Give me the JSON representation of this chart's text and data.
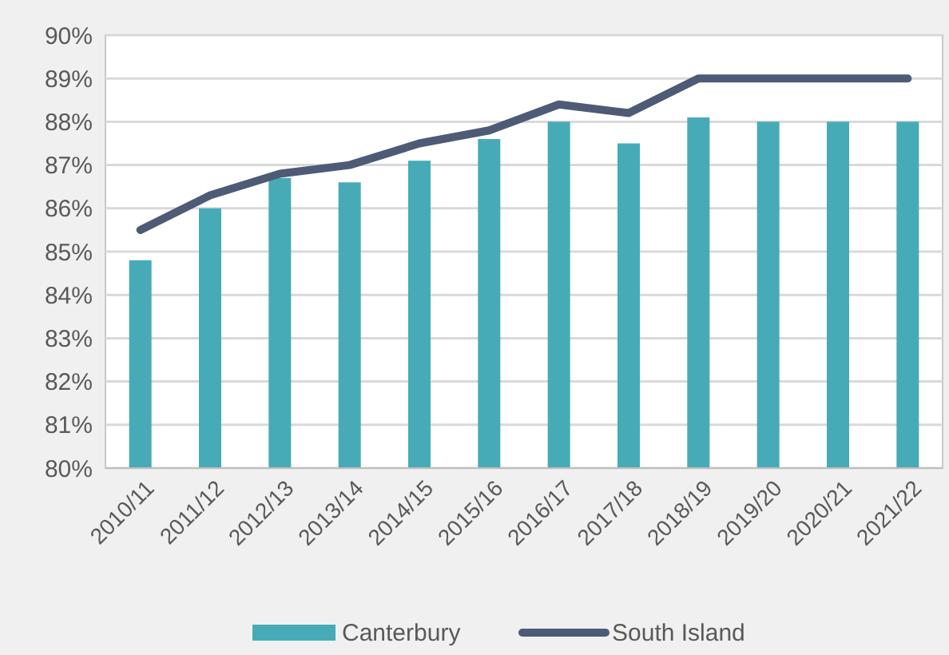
{
  "chart_data": {
    "type": "bar",
    "categories": [
      "2010/11",
      "2011/12",
      "2012/13",
      "2013/14",
      "2014/15",
      "2015/16",
      "2016/17",
      "2017/18",
      "2018/19",
      "2019/20",
      "2020/21",
      "2021/22"
    ],
    "series": [
      {
        "name": "Canterbury",
        "color": "#46abb7",
        "values": [
          84.8,
          86.0,
          86.7,
          86.6,
          87.1,
          87.6,
          88.0,
          87.5,
          88.1,
          88.0,
          88.0,
          88.0
        ]
      },
      {
        "name": "South Island",
        "type": "line",
        "color": "#4d5b77",
        "values": [
          85.5,
          86.3,
          86.8,
          87.0,
          87.5,
          87.8,
          88.4,
          88.2,
          89.0,
          89.0,
          89.0,
          89.0
        ]
      }
    ],
    "ylim": [
      80,
      90
    ],
    "yticks": [
      {
        "value": 80,
        "label": "80%"
      },
      {
        "value": 81,
        "label": "81%"
      },
      {
        "value": 82,
        "label": "82%"
      },
      {
        "value": 83,
        "label": "83%"
      },
      {
        "value": 84,
        "label": "84%"
      },
      {
        "value": 85,
        "label": "85%"
      },
      {
        "value": 86,
        "label": "86%"
      },
      {
        "value": 87,
        "label": "87%"
      },
      {
        "value": 88,
        "label": "88%"
      },
      {
        "value": 89,
        "label": "89%"
      },
      {
        "value": 90,
        "label": "90%"
      }
    ],
    "grid": "y",
    "legend": "bottom"
  }
}
